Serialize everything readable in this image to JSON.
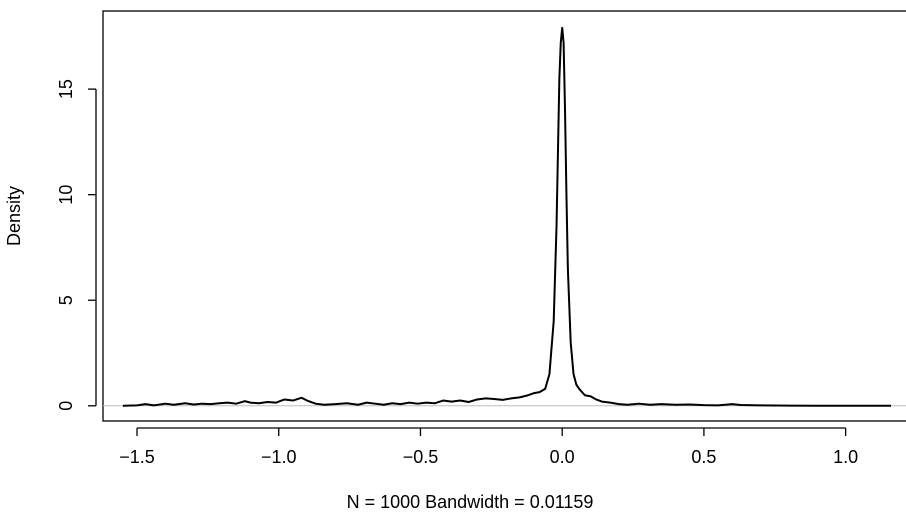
{
  "chart_data": {
    "type": "line",
    "title": "",
    "xlabel": "N = 1000   Bandwidth = 0.01159",
    "ylabel": "Density",
    "xlim": [
      -1.62,
      1.22
    ],
    "ylim": [
      -0.72,
      18.7
    ],
    "xticks": [
      -1.5,
      -1.0,
      -0.5,
      0.0,
      0.5,
      1.0
    ],
    "xtick_labels": [
      "−1.5",
      "−1.0",
      "−0.5",
      "0.0",
      "0.5",
      "1.0"
    ],
    "yticks": [
      0,
      5,
      10,
      15
    ],
    "ytick_labels": [
      "0",
      "5",
      "10",
      "15"
    ],
    "baseline": 0,
    "grid": false,
    "series": [
      {
        "line_color": "#000000",
        "x": [
          -1.55,
          -1.5,
          -1.47,
          -1.44,
          -1.4,
          -1.37,
          -1.33,
          -1.3,
          -1.27,
          -1.24,
          -1.21,
          -1.18,
          -1.15,
          -1.12,
          -1.1,
          -1.07,
          -1.04,
          -1.01,
          -0.98,
          -0.95,
          -0.92,
          -0.9,
          -0.87,
          -0.84,
          -0.8,
          -0.76,
          -0.72,
          -0.69,
          -0.66,
          -0.63,
          -0.6,
          -0.57,
          -0.54,
          -0.51,
          -0.48,
          -0.45,
          -0.42,
          -0.39,
          -0.36,
          -0.33,
          -0.3,
          -0.27,
          -0.24,
          -0.21,
          -0.18,
          -0.15,
          -0.12,
          -0.1,
          -0.08,
          -0.06,
          -0.045,
          -0.03,
          -0.02,
          -0.015,
          -0.01,
          -0.005,
          0.0,
          0.005,
          0.01,
          0.015,
          0.02,
          0.03,
          0.04,
          0.05,
          0.06,
          0.08,
          0.1,
          0.12,
          0.14,
          0.17,
          0.2,
          0.23,
          0.27,
          0.31,
          0.35,
          0.4,
          0.45,
          0.5,
          0.55,
          0.6,
          0.63,
          0.7,
          0.8,
          0.9,
          1.0,
          1.1,
          1.16
        ],
        "y": [
          0.0,
          0.02,
          0.08,
          0.02,
          0.1,
          0.05,
          0.12,
          0.06,
          0.1,
          0.08,
          0.12,
          0.15,
          0.1,
          0.22,
          0.15,
          0.12,
          0.18,
          0.15,
          0.3,
          0.25,
          0.38,
          0.25,
          0.1,
          0.05,
          0.08,
          0.12,
          0.05,
          0.15,
          0.1,
          0.05,
          0.12,
          0.08,
          0.15,
          0.1,
          0.15,
          0.12,
          0.25,
          0.2,
          0.25,
          0.18,
          0.3,
          0.35,
          0.32,
          0.28,
          0.35,
          0.4,
          0.5,
          0.6,
          0.65,
          0.8,
          1.5,
          4.0,
          8.5,
          12.0,
          15.5,
          17.2,
          17.9,
          17.2,
          14.0,
          10.0,
          6.5,
          3.0,
          1.5,
          1.0,
          0.8,
          0.5,
          0.45,
          0.3,
          0.2,
          0.15,
          0.08,
          0.05,
          0.1,
          0.05,
          0.08,
          0.05,
          0.06,
          0.03,
          0.02,
          0.08,
          0.04,
          0.02,
          0.01,
          0.0,
          0.0,
          0.0,
          0.0
        ]
      }
    ]
  }
}
